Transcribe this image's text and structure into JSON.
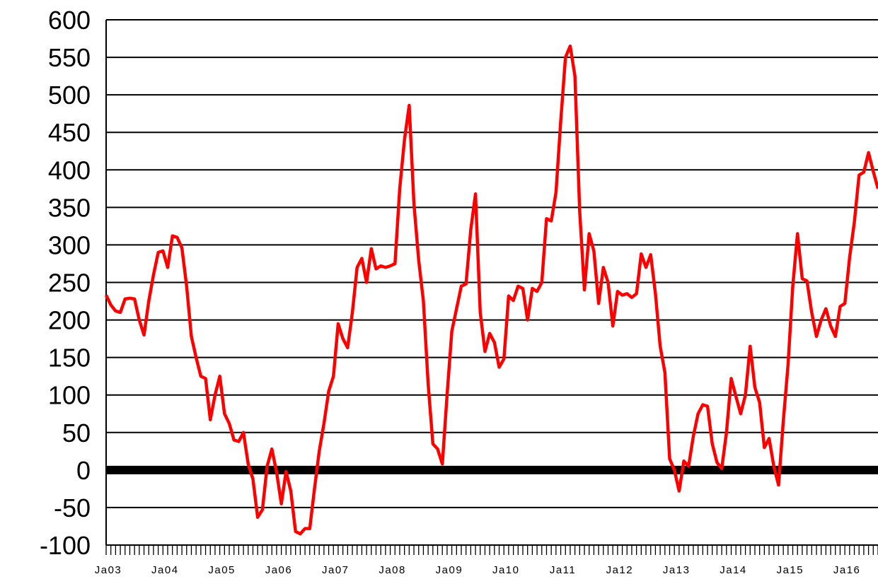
{
  "chart_data": {
    "type": "line",
    "title": "",
    "xlabel": "",
    "ylabel": "",
    "ylim": [
      -100,
      600
    ],
    "yticks": [
      600,
      550,
      500,
      450,
      400,
      350,
      300,
      250,
      200,
      150,
      100,
      50,
      0,
      -50,
      -100
    ],
    "ytick_labels": [
      "600",
      "550",
      "500",
      "450",
      "400",
      "350",
      "300",
      "250",
      "200",
      "150",
      "100",
      "50",
      "0",
      "-50",
      "-100"
    ],
    "xtick_labels": [
      "Ja03",
      "Ja04",
      "Ja05",
      "Ja06",
      "Ja07",
      "Ja08",
      "Ja09",
      "Ja10",
      "Ja11",
      "Ja12",
      "Ja13",
      "Ja14",
      "Ja15",
      "Ja16"
    ],
    "x_start": "2003-01",
    "x_interval": "month",
    "grid": true,
    "zero_line_emphasized": true,
    "series": [
      {
        "color": "#ff0000",
        "values": [
          233,
          220,
          212,
          210,
          228,
          229,
          228,
          200,
          180,
          225,
          260,
          290,
          292,
          270,
          312,
          310,
          296,
          245,
          178,
          150,
          125,
          122,
          67,
          100,
          125,
          75,
          62,
          40,
          38,
          50,
          8,
          -12,
          -63,
          -53,
          5,
          28,
          -3,
          -45,
          -2,
          -28,
          -82,
          -85,
          -78,
          -78,
          -25,
          25,
          62,
          105,
          125,
          195,
          175,
          163,
          210,
          270,
          282,
          250,
          295,
          268,
          272,
          270,
          272,
          275,
          375,
          440,
          486,
          355,
          280,
          225,
          115,
          35,
          28,
          8,
          100,
          185,
          215,
          245,
          248,
          320,
          368,
          210,
          158,
          182,
          170,
          137,
          148,
          232,
          226,
          245,
          242,
          200,
          242,
          238,
          250,
          335,
          332,
          370,
          465,
          550,
          565,
          525,
          345,
          240,
          315,
          292,
          222,
          270,
          250,
          192,
          238,
          233,
          235,
          230,
          235,
          288,
          270,
          287,
          235,
          165,
          130,
          15,
          0,
          -28,
          12,
          5,
          45,
          75,
          87,
          85,
          35,
          10,
          2,
          50,
          122,
          98,
          75,
          100,
          165,
          110,
          90,
          30,
          42,
          5,
          -20,
          65,
          140,
          245,
          315,
          255,
          252,
          210,
          178,
          200,
          215,
          192,
          178,
          218,
          222,
          283,
          330,
          393,
          397,
          423,
          398,
          375
        ]
      }
    ]
  }
}
